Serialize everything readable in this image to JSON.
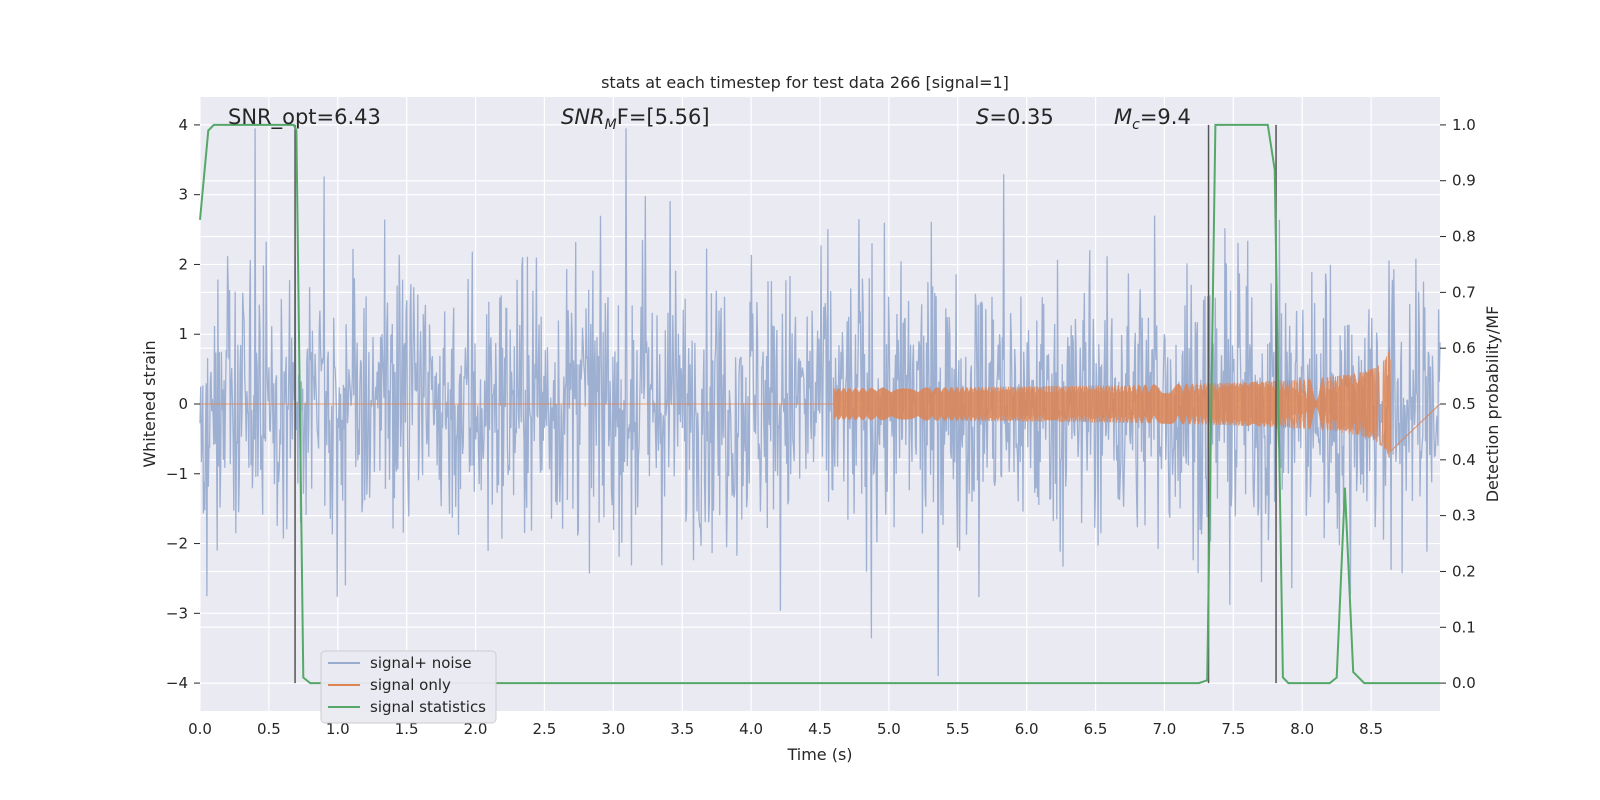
{
  "chart_data": {
    "type": "line",
    "title": "stats at each timestep for test data 266 [signal=1]",
    "xlabel": "Time (s)",
    "ylabel": "Whitened strain",
    "y2label": "Detection probability/MF",
    "xlim": [
      0,
      9.0
    ],
    "ylim": [
      -4.4,
      4.4
    ],
    "y2lim": [
      -0.05,
      1.05
    ],
    "xticks": [
      "0.0",
      "0.5",
      "1.0",
      "1.5",
      "2.0",
      "2.5",
      "3.0",
      "3.5",
      "4.0",
      "4.5",
      "5.0",
      "5.5",
      "6.0",
      "6.5",
      "7.0",
      "7.5",
      "8.0",
      "8.5"
    ],
    "yticks": [
      "4",
      "3",
      "2",
      "1",
      "0",
      "−1",
      "−2",
      "−3",
      "−4"
    ],
    "y2ticks": [
      "1.0",
      "0.9",
      "0.8",
      "0.7",
      "0.6",
      "0.5",
      "0.4",
      "0.3",
      "0.2",
      "0.1",
      "0.0"
    ],
    "grid": true,
    "legend_position": "lower-left",
    "annotations": {
      "snr_opt": "SNR_opt=6.43",
      "snr_mf_base": "SNR",
      "snr_mf_sub": "M",
      "snr_mf_rest": "F=[5.56]",
      "s_sym": "S",
      "s_val": "=0.35",
      "mc_sym": "M",
      "mc_sub": "c",
      "mc_val": "=9.4"
    },
    "vertical_lines": [
      0.69,
      7.32,
      7.81
    ],
    "series": [
      {
        "name": "signal+ noise",
        "color": "#9aadd0",
        "description_values": {
          "approx_abs_peak": 4.0,
          "noise_std": 0.8,
          "sample_count": 1800
        }
      },
      {
        "name": "signal only",
        "color": "#dd8452",
        "chirp": {
          "start": 4.6,
          "end": 8.64,
          "peak_amplitude": 0.9
        }
      },
      {
        "name": "signal statistics",
        "color": "#55a868",
        "axis": "right",
        "x": [
          0.0,
          0.06,
          0.1,
          0.3,
          0.5,
          0.68,
          0.7,
          0.75,
          0.8,
          1.0,
          2.0,
          3.0,
          4.0,
          5.0,
          6.0,
          7.0,
          7.25,
          7.31,
          7.37,
          7.5,
          7.75,
          7.8,
          7.86,
          7.9,
          8.0,
          8.2,
          8.25,
          8.31,
          8.37,
          8.45,
          8.6,
          9.0
        ],
        "y": [
          0.83,
          0.99,
          1.0,
          1.0,
          1.0,
          1.0,
          0.99,
          0.01,
          0.0,
          0.0,
          0.0,
          0.0,
          0.0,
          0.0,
          0.0,
          0.0,
          0.0,
          0.005,
          1.0,
          1.0,
          1.0,
          0.92,
          0.01,
          0.0,
          0.0,
          0.0,
          0.01,
          0.35,
          0.02,
          0.0,
          0.0,
          0.0
        ]
      }
    ]
  }
}
